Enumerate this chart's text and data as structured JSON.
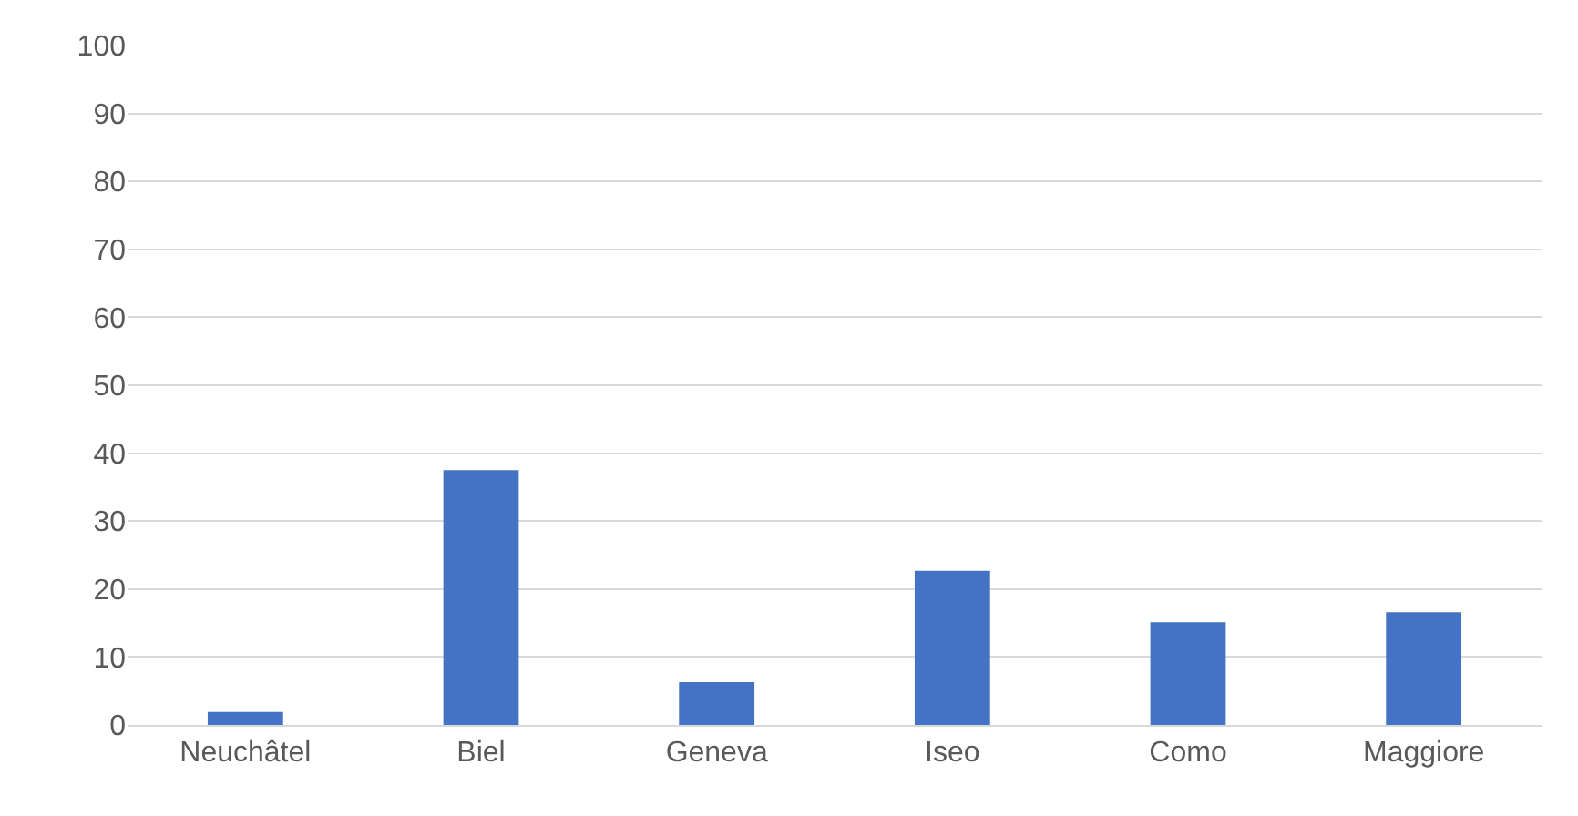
{
  "chart_data": {
    "type": "bar",
    "categories": [
      "Neuchâtel",
      "Biel",
      "Geneva",
      "Iseo",
      "Como",
      "Maggiore"
    ],
    "values": [
      1.9,
      37.5,
      6.3,
      22.7,
      15.1,
      16.6
    ],
    "color": "#4472c4",
    "ylim": [
      0,
      100
    ],
    "yticks": [
      0,
      10,
      20,
      30,
      40,
      50,
      60,
      70,
      80,
      90,
      100
    ],
    "grid": "y"
  }
}
